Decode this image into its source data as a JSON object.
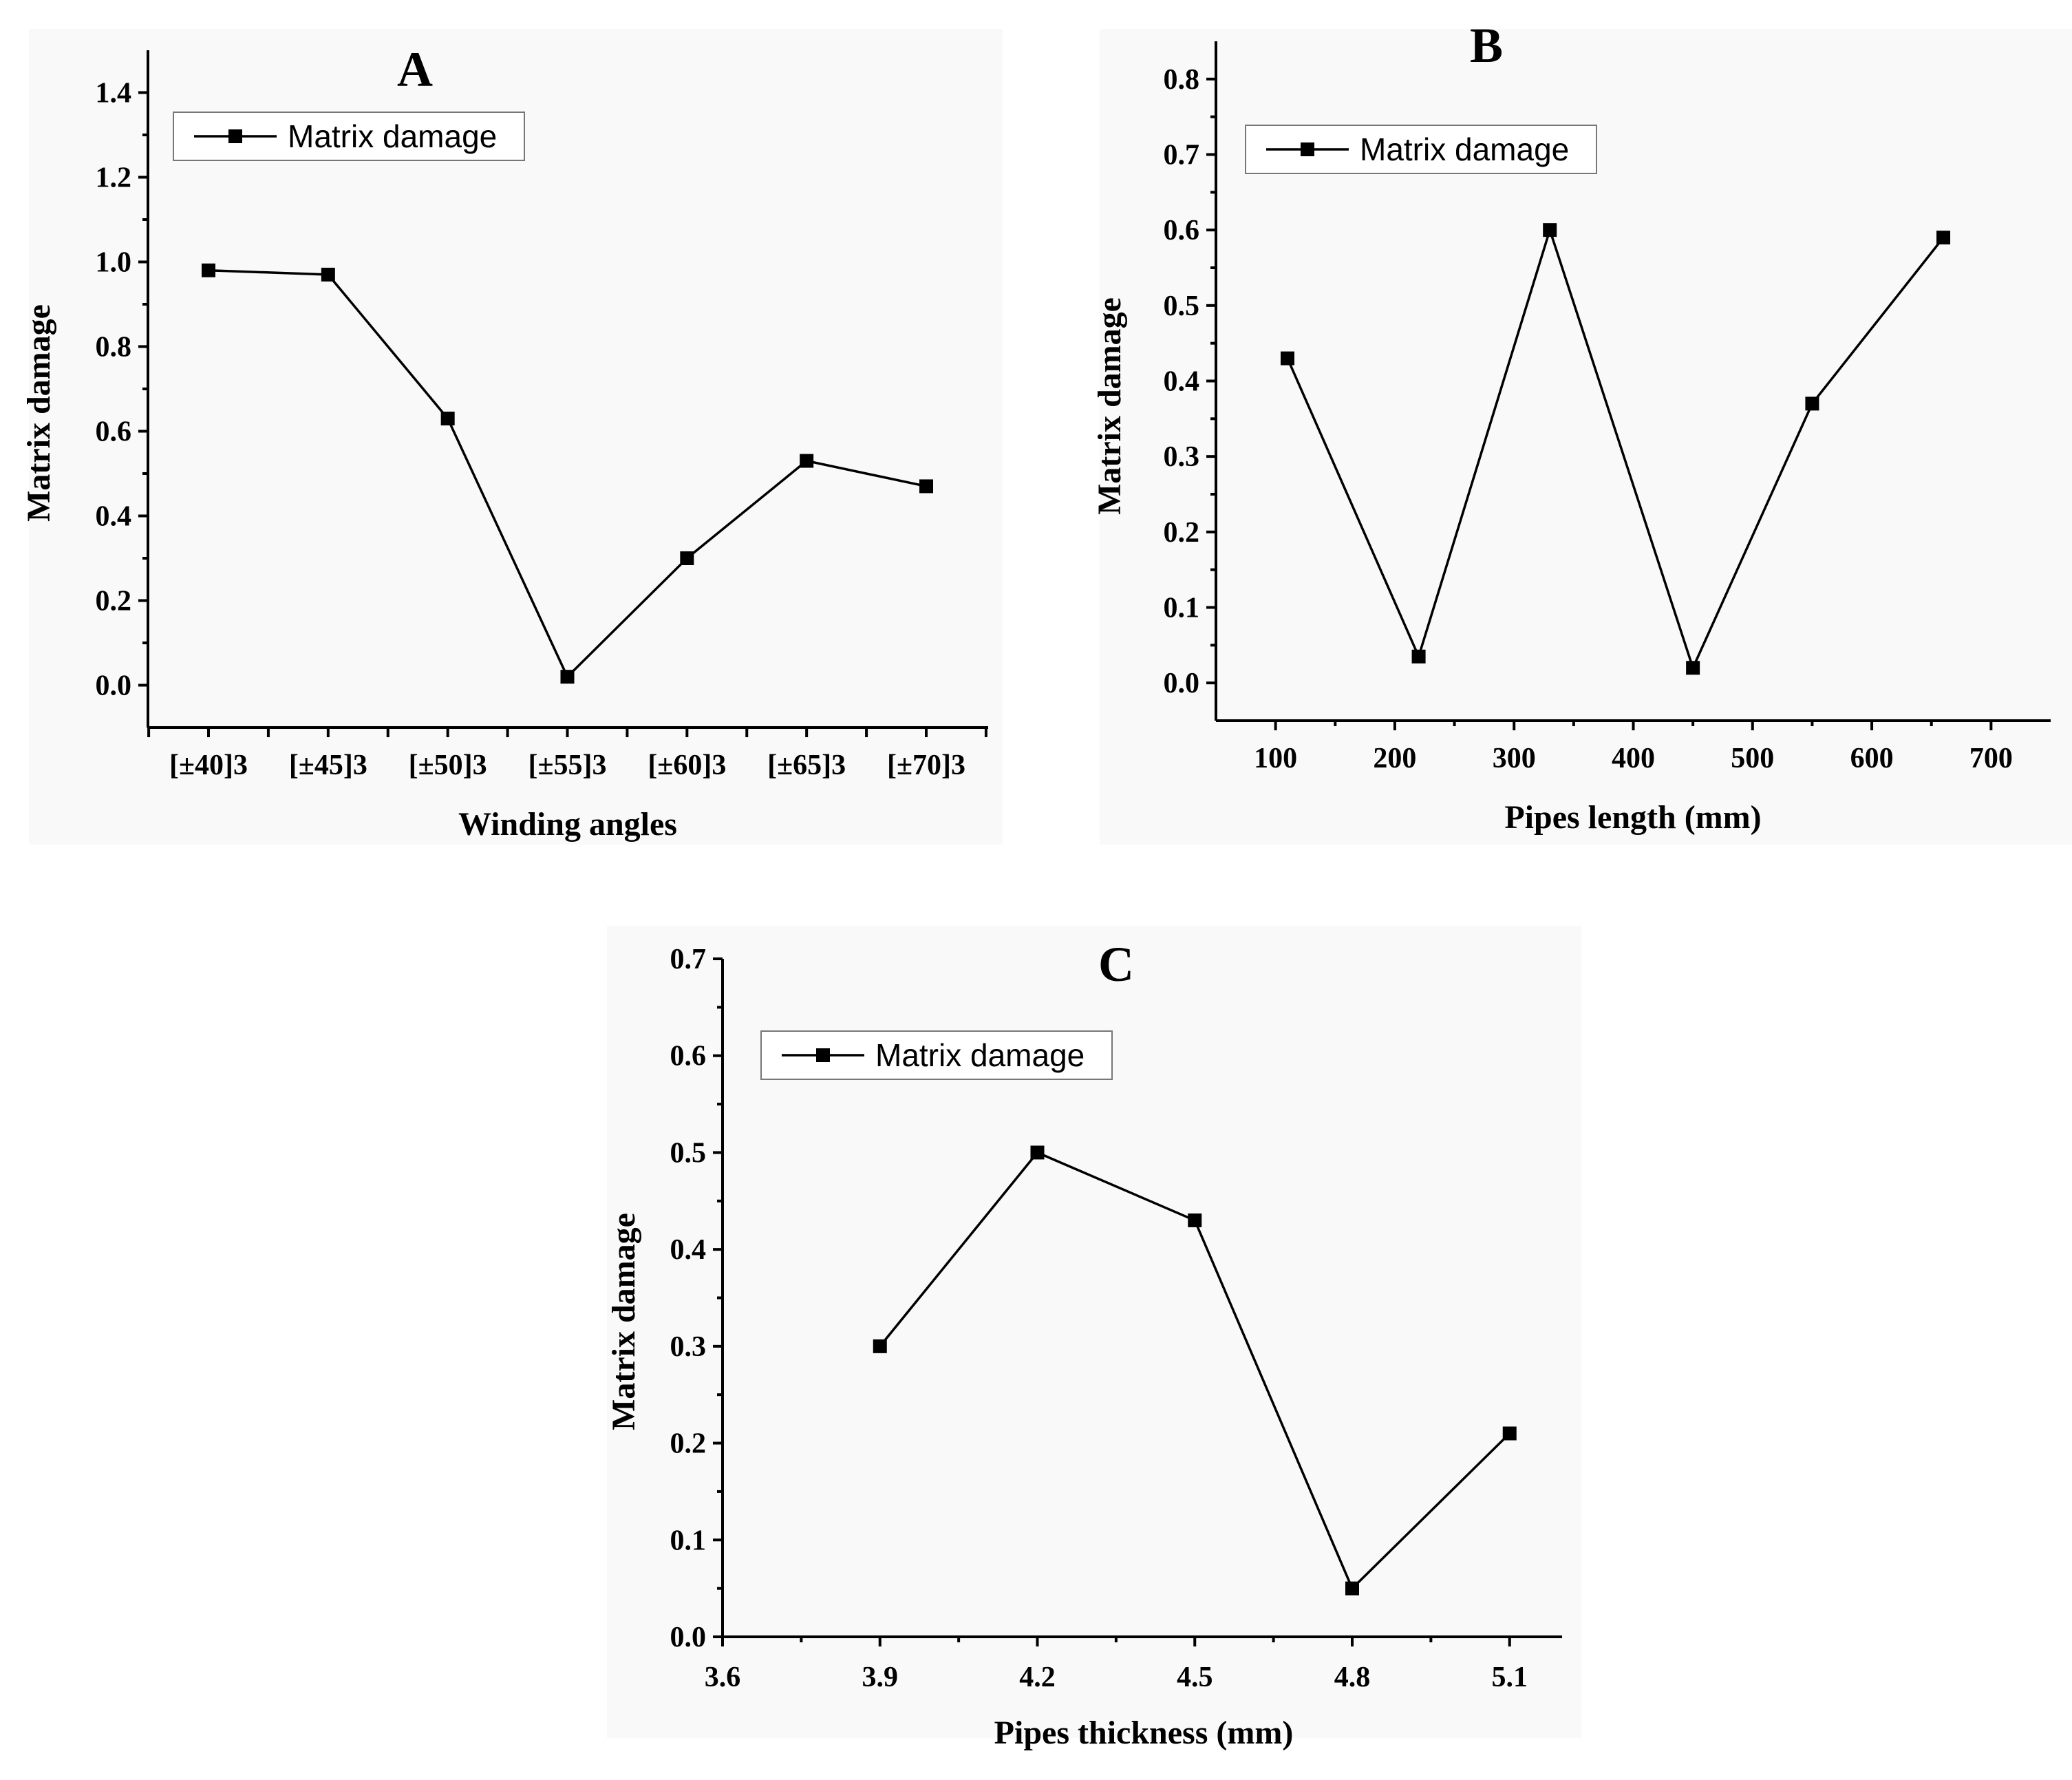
{
  "chart_data": [
    {
      "panel": "A",
      "type": "line",
      "title": "A",
      "xlabel": "Winding angles",
      "ylabel": "Matrix damage",
      "categories": [
        "[±40]3",
        "[±45]3",
        "[±50]3",
        "[±55]3",
        "[±60]3",
        "[±65]3",
        "[±70]3"
      ],
      "series": [
        {
          "name": "Matrix damage",
          "values": [
            0.98,
            0.97,
            0.63,
            0.02,
            0.3,
            0.53,
            0.47
          ]
        }
      ],
      "ylim": [
        -0.1,
        1.5
      ],
      "yticks": [
        0.0,
        0.2,
        0.4,
        0.6,
        0.8,
        1.0,
        1.2,
        1.4
      ],
      "ytick_labels": [
        "0.0",
        "0.2",
        "0.4",
        "0.6",
        "0.8",
        "1.0",
        "1.2",
        "1.4"
      ],
      "legend": "top-left"
    },
    {
      "panel": "B",
      "type": "line",
      "title": "B",
      "xlabel": "Pipes length (mm)",
      "ylabel": "Matrix damage",
      "x": [
        110,
        220,
        330,
        450,
        550,
        660
      ],
      "series": [
        {
          "name": "Matrix damage",
          "values": [
            0.43,
            0.035,
            0.6,
            0.02,
            0.37,
            0.59
          ]
        }
      ],
      "xlim": [
        50,
        750
      ],
      "xticks": [
        100,
        200,
        300,
        400,
        500,
        600,
        700
      ],
      "xtick_labels": [
        "100",
        "200",
        "300",
        "400",
        "500",
        "600",
        "700"
      ],
      "ylim": [
        -0.05,
        0.85
      ],
      "yticks": [
        0.0,
        0.1,
        0.2,
        0.3,
        0.4,
        0.5,
        0.6,
        0.7,
        0.8
      ],
      "ytick_labels": [
        "0.0",
        "0.1",
        "0.2",
        "0.3",
        "0.4",
        "0.5",
        "0.6",
        "0.7",
        "0.8"
      ],
      "legend": "top-left"
    },
    {
      "panel": "C",
      "type": "line",
      "title": "C",
      "xlabel": "Pipes thickness (mm)",
      "ylabel": "Matrix damage",
      "x": [
        3.9,
        4.2,
        4.5,
        4.8,
        5.1
      ],
      "series": [
        {
          "name": "Matrix damage",
          "values": [
            0.3,
            0.5,
            0.43,
            0.05,
            0.21
          ]
        }
      ],
      "xlim": [
        3.6,
        5.2
      ],
      "xticks": [
        3.6,
        3.9,
        4.2,
        4.5,
        4.8,
        5.1
      ],
      "xtick_labels": [
        "3.6",
        "3.9",
        "4.2",
        "4.5",
        "4.8",
        "5.1"
      ],
      "ylim": [
        0.0,
        0.7
      ],
      "yticks": [
        0.0,
        0.1,
        0.2,
        0.3,
        0.4,
        0.5,
        0.6,
        0.7
      ],
      "ytick_labels": [
        "0.0",
        "0.1",
        "0.2",
        "0.3",
        "0.4",
        "0.5",
        "0.6",
        "0.7"
      ],
      "legend": "top-left"
    }
  ]
}
